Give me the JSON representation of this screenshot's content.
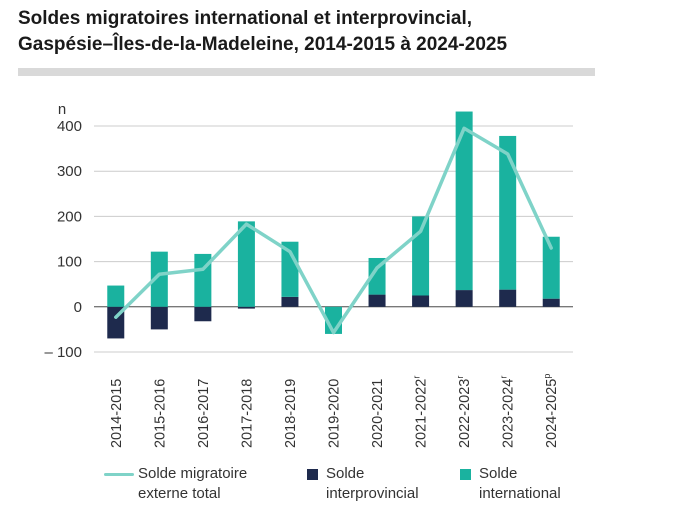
{
  "title_line1": "Soldes migratoires international et interprovincial,",
  "title_line2": "Gaspésie–Îles-de-la-Madeleine, 2014-2015 à 2024-2025",
  "colors": {
    "international": "#1ab29f",
    "interprovincial": "#1e2a4d",
    "total_line": "#7fd3c8",
    "grid": "#cccccc",
    "title_bar": "#d9d9d9"
  },
  "chart_data": {
    "type": "bar",
    "stacked": true,
    "ylabel": "n",
    "ylim": [
      -100,
      400
    ],
    "yticks": [
      -100,
      0,
      100,
      200,
      300,
      400
    ],
    "ytick_labels": [
      "– 100",
      "0",
      "100",
      "200",
      "300",
      "400"
    ],
    "grid": true,
    "categories": [
      "2014-2015",
      "2015-2016",
      "2016-2017",
      "2017-2018",
      "2018-2019",
      "2019-2020",
      "2020-2021",
      "2021-2022",
      "2022-2023",
      "2023-2024",
      "2024-2025"
    ],
    "category_superscripts": [
      "",
      "",
      "",
      "",
      "",
      "",
      "",
      "r",
      "r",
      "r",
      "p"
    ],
    "series": [
      {
        "name": "Solde\ninterprovincial",
        "type": "bar",
        "values": [
          -70,
          -50,
          -32,
          -4,
          22,
          0,
          27,
          25,
          37,
          38,
          18
        ]
      },
      {
        "name": "Solde\ninternational",
        "type": "bar",
        "values": [
          47,
          122,
          117,
          189,
          122,
          -60,
          81,
          175,
          395,
          340,
          137
        ]
      },
      {
        "name": "Solde migratoire\nexterne total",
        "type": "line",
        "values": [
          -23,
          72,
          83,
          183,
          122,
          -57,
          86,
          167,
          395,
          338,
          130
        ]
      }
    ],
    "legend_position": "bottom"
  }
}
